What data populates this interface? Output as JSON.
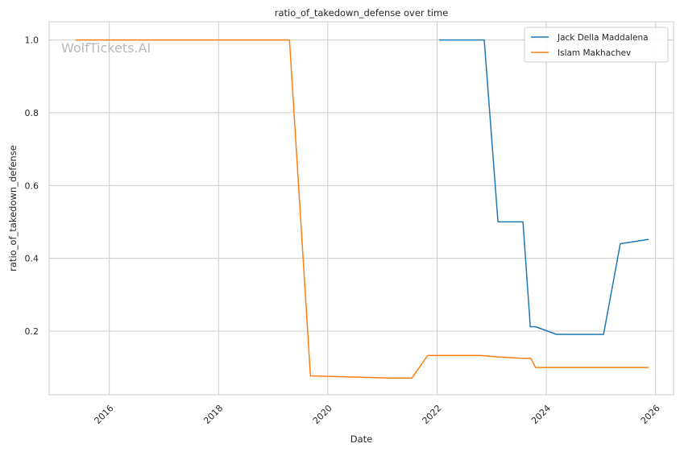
{
  "chart_data": {
    "type": "line",
    "title": "ratio_of_takedown_defense over time",
    "xlabel": "Date",
    "ylabel": "ratio_of_takedown_defense",
    "watermark": "WolfTickets.AI",
    "xlim": [
      "2014-11-25",
      "2026-05-01"
    ],
    "ylim": [
      0.025,
      1.05
    ],
    "xticks": [
      "2016-01-01",
      "2018-01-01",
      "2020-01-01",
      "2022-01-01",
      "2024-01-01",
      "2026-01-01"
    ],
    "xtick_labels": [
      "2016",
      "2018",
      "2020",
      "2022",
      "2024",
      "2026"
    ],
    "yticks": [
      0.2,
      0.4,
      0.6,
      0.8,
      1.0
    ],
    "ytick_labels": [
      "0.2",
      "0.4",
      "0.6",
      "0.8",
      "1.0"
    ],
    "grid": true,
    "legend_position": "top-right",
    "series": [
      {
        "name": "Jack Della Maddalena",
        "color": "#1f77b4",
        "points": [
          [
            "2022-01-15",
            1.0
          ],
          [
            "2022-11-12",
            1.0
          ],
          [
            "2023-02-12",
            0.5
          ],
          [
            "2023-07-29",
            0.5
          ],
          [
            "2023-09-16",
            0.212
          ],
          [
            "2023-10-21",
            0.212
          ],
          [
            "2024-03-09",
            0.191
          ],
          [
            "2025-01-18",
            0.191
          ],
          [
            "2025-05-10",
            0.44
          ],
          [
            "2025-11-15",
            0.452
          ]
        ]
      },
      {
        "name": "Islam Makhachev",
        "color": "#ff7f0e",
        "points": [
          [
            "2015-05-23",
            1.0
          ],
          [
            "2019-04-20",
            1.0
          ],
          [
            "2019-09-07",
            0.077
          ],
          [
            "2021-02-27",
            0.071
          ],
          [
            "2021-07-17",
            0.071
          ],
          [
            "2021-10-30",
            0.133
          ],
          [
            "2022-10-22",
            0.133
          ],
          [
            "2023-02-12",
            0.129
          ],
          [
            "2023-07-29",
            0.125
          ],
          [
            "2023-09-20",
            0.125
          ],
          [
            "2023-10-21",
            0.1
          ],
          [
            "2025-11-15",
            0.1
          ]
        ]
      }
    ]
  }
}
